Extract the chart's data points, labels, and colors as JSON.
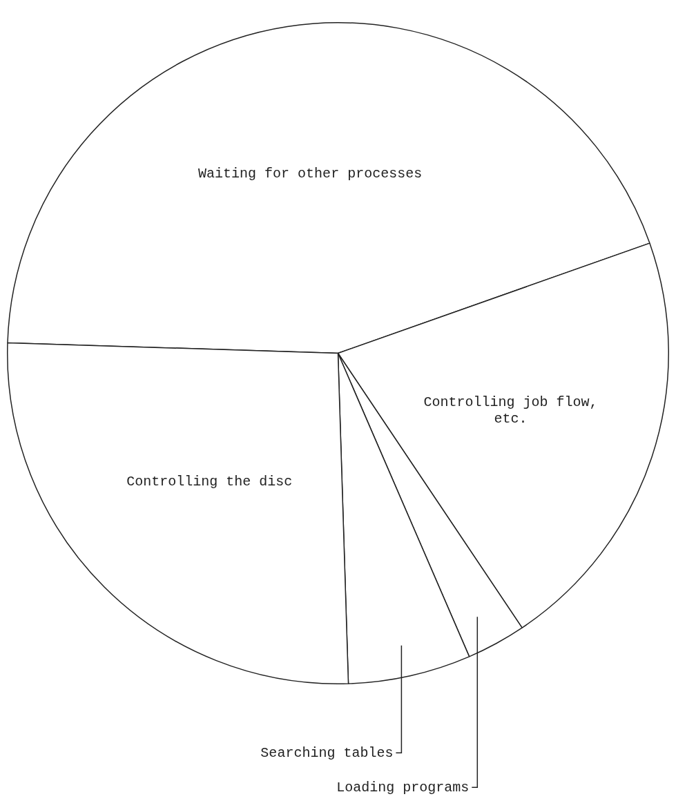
{
  "chart_data": {
    "type": "pie",
    "categories": [
      "Waiting for other processes",
      "Controlling job flow, etc.",
      "Loading programs",
      "Searching tables",
      "Controlling the disc"
    ],
    "values": [
      44.1,
      21.0,
      2.9,
      6.0,
      26.0
    ],
    "colors": [
      "#ffffff",
      "#ffffff",
      "#ffffff",
      "#ffffff",
      "#ffffff"
    ],
    "legend": false
  }
}
